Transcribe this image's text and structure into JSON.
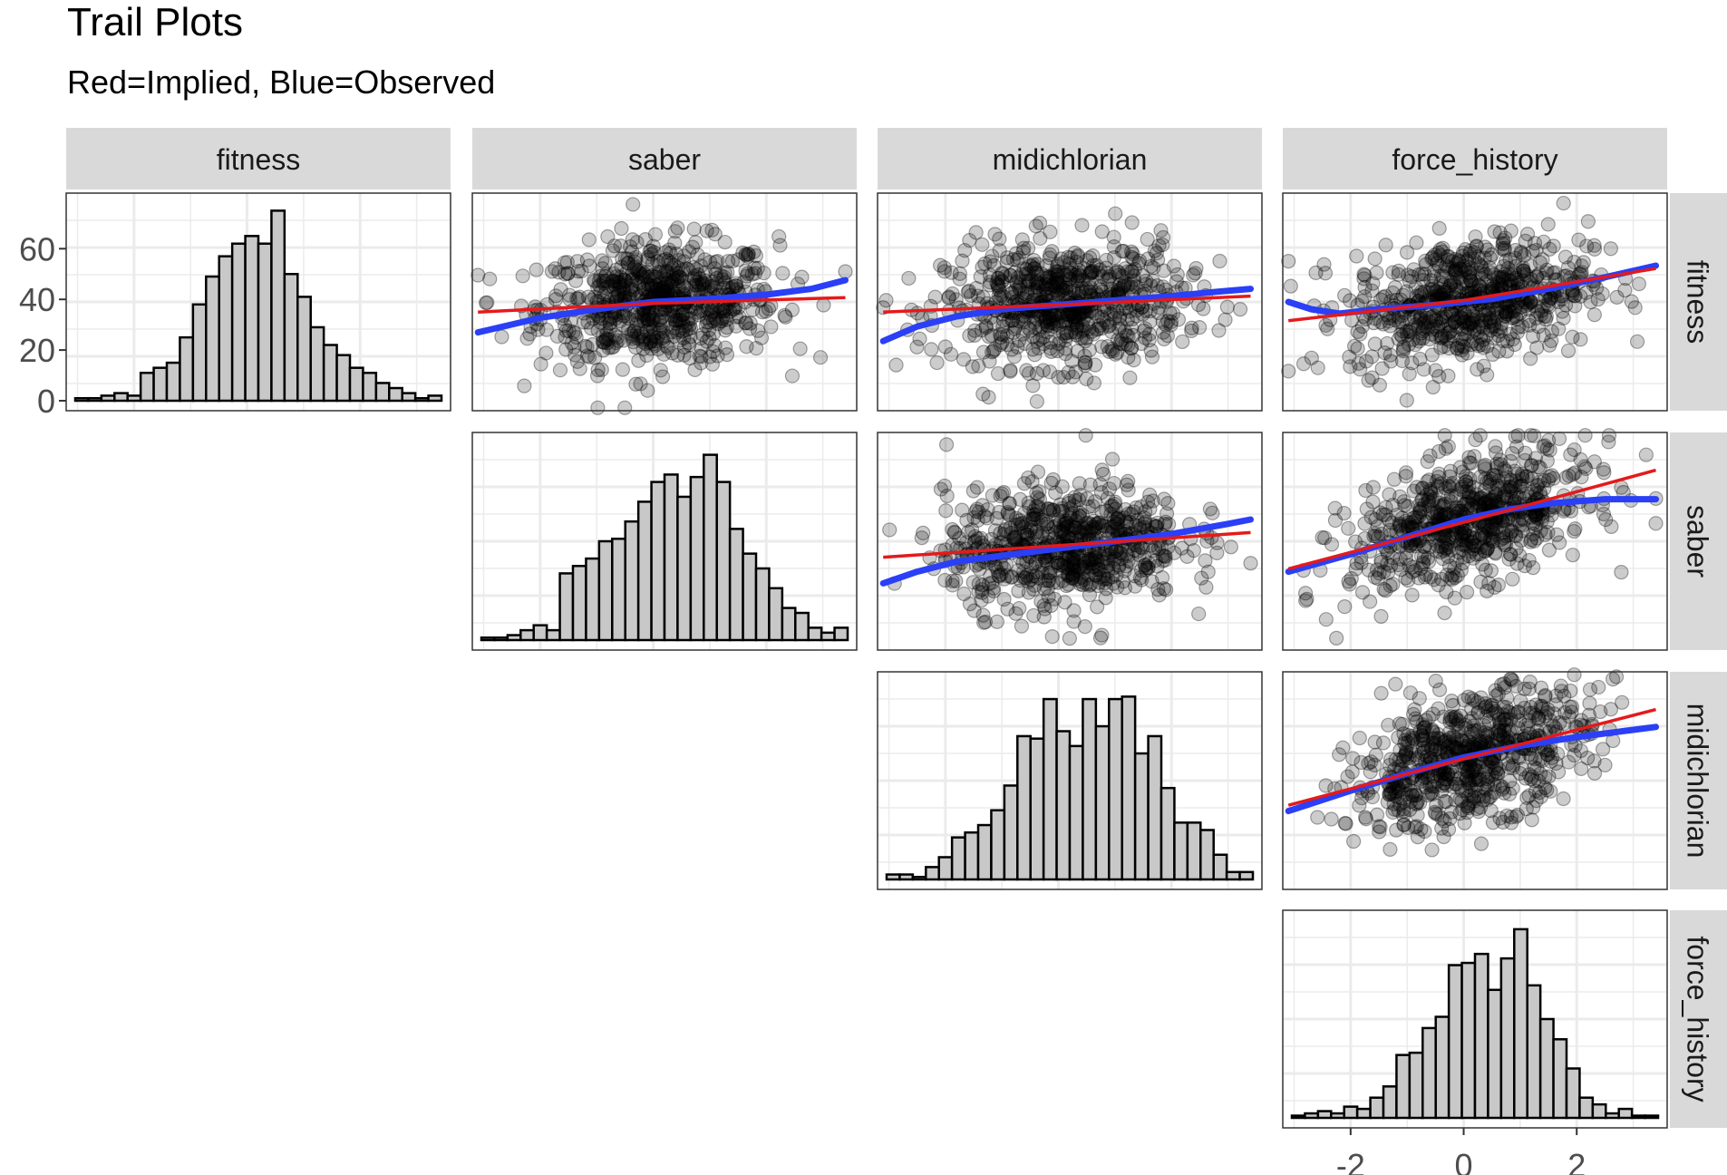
{
  "title": "Trail Plots",
  "subtitle": "Red=Implied, Blue=Observed",
  "colors": {
    "implied": "#e41a1c",
    "observed": "#2a3ff6",
    "bar_fill": "#c8c8c8",
    "strip_bg": "#d9d9d9",
    "grid": "#ebebeb",
    "points": "#000000"
  },
  "chart_data": {
    "type": "scatter",
    "layout": "upper-triangular pairs matrix (histograms on diagonal, scatterplots with trend lines above)",
    "variables": [
      "fitness",
      "saber",
      "midichlorian",
      "force_history"
    ],
    "axes": {
      "x_ticks": [
        -2,
        0,
        2
      ],
      "x_range": [
        -3.2,
        3.6
      ],
      "y_ticks_fitness_histogram": [
        0,
        20,
        40,
        60
      ],
      "y_range_fitness_histogram": [
        0,
        78
      ]
    },
    "grid": true,
    "legend": "none",
    "histograms": {
      "fitness": [
        1,
        1,
        2,
        3,
        2,
        11,
        13,
        15,
        25,
        38,
        49,
        57,
        62,
        65,
        62,
        75,
        50,
        41,
        29,
        22,
        18,
        13,
        11,
        7,
        5,
        3,
        1,
        2
      ],
      "saber": [
        1,
        1,
        2,
        4,
        6,
        4,
        27,
        30,
        33,
        40,
        41,
        48,
        56,
        64,
        67,
        58,
        66,
        75,
        64,
        45,
        35,
        29,
        21,
        13,
        11,
        5,
        3,
        5
      ],
      "midichlorian": [
        2,
        2,
        1,
        5,
        9,
        17,
        19,
        22,
        28,
        38,
        58,
        57,
        73,
        60,
        54,
        73,
        62,
        73,
        74,
        51,
        58,
        37,
        23,
        23,
        20,
        10,
        3,
        3
      ],
      "force_history": [
        1,
        2,
        3,
        2,
        5,
        4,
        9,
        14,
        28,
        29,
        40,
        45,
        68,
        69,
        73,
        57,
        71,
        84,
        59,
        44,
        35,
        22,
        9,
        6,
        2,
        4,
        1,
        1
      ]
    },
    "panels": [
      {
        "row": "fitness",
        "col": "saber",
        "implied": [
          [
            -3.1,
            34.0
          ],
          [
            0,
            37.0
          ],
          [
            3.4,
            39.0
          ]
        ],
        "observed": [
          [
            -3.1,
            27.0
          ],
          [
            -2.0,
            32.0
          ],
          [
            -1.0,
            35.0
          ],
          [
            0,
            37.5
          ],
          [
            1.0,
            38.5
          ],
          [
            2.0,
            40.0
          ],
          [
            2.8,
            42.0
          ],
          [
            3.4,
            45.0
          ]
        ]
      },
      {
        "row": "fitness",
        "col": "midichlorian",
        "implied": [
          [
            -3.1,
            34.0
          ],
          [
            0,
            36.5
          ],
          [
            3.4,
            39.5
          ]
        ],
        "observed": [
          [
            -3.1,
            24.0
          ],
          [
            -2.5,
            29.0
          ],
          [
            -1.8,
            32.5
          ],
          [
            -1.0,
            35.0
          ],
          [
            0,
            36.5
          ],
          [
            1.0,
            38.0
          ],
          [
            2.0,
            39.5
          ],
          [
            2.8,
            41.0
          ],
          [
            3.4,
            42.0
          ]
        ]
      },
      {
        "row": "fitness",
        "col": "force_history",
        "implied": [
          [
            -3.1,
            31.0
          ],
          [
            0,
            38.0
          ],
          [
            3.4,
            49.0
          ]
        ],
        "observed": [
          [
            -3.1,
            37.5
          ],
          [
            -2.7,
            35.0
          ],
          [
            -2.2,
            33.5
          ],
          [
            -1.5,
            35.0
          ],
          [
            -0.5,
            36.5
          ],
          [
            0.5,
            38.5
          ],
          [
            1.5,
            42.0
          ],
          [
            2.5,
            46.0
          ],
          [
            3.4,
            50.0
          ]
        ]
      },
      {
        "row": "saber",
        "col": "midichlorian",
        "implied": [
          [
            -3.1,
            32.0
          ],
          [
            0,
            36.0
          ],
          [
            3.4,
            40.5
          ]
        ],
        "observed": [
          [
            -3.1,
            23.0
          ],
          [
            -2.5,
            27.0
          ],
          [
            -1.8,
            30.5
          ],
          [
            -1.0,
            32.5
          ],
          [
            0,
            35.0
          ],
          [
            1.0,
            37.5
          ],
          [
            2.0,
            40.0
          ],
          [
            3.0,
            43.5
          ],
          [
            3.4,
            45.0
          ]
        ]
      },
      {
        "row": "saber",
        "col": "force_history",
        "implied": [
          [
            -3.1,
            28.0
          ],
          [
            0,
            44.0
          ],
          [
            3.4,
            62.0
          ]
        ],
        "observed": [
          [
            -3.1,
            27.0
          ],
          [
            -2.0,
            33.0
          ],
          [
            -1.0,
            39.0
          ],
          [
            0,
            45.0
          ],
          [
            0.8,
            48.5
          ],
          [
            1.5,
            50.5
          ],
          [
            2.5,
            52.0
          ],
          [
            3.4,
            52.0
          ]
        ]
      },
      {
        "row": "midichlorian",
        "col": "force_history",
        "implied": [
          [
            -3.1,
            29.0
          ],
          [
            0,
            45.0
          ],
          [
            3.4,
            62.0
          ]
        ],
        "observed": [
          [
            -3.1,
            27.0
          ],
          [
            -2.0,
            34.0
          ],
          [
            -1.0,
            40.0
          ],
          [
            0,
            45.5
          ],
          [
            1.0,
            49.5
          ],
          [
            2.0,
            52.5
          ],
          [
            3.0,
            55.0
          ],
          [
            3.4,
            56.0
          ]
        ]
      }
    ]
  }
}
